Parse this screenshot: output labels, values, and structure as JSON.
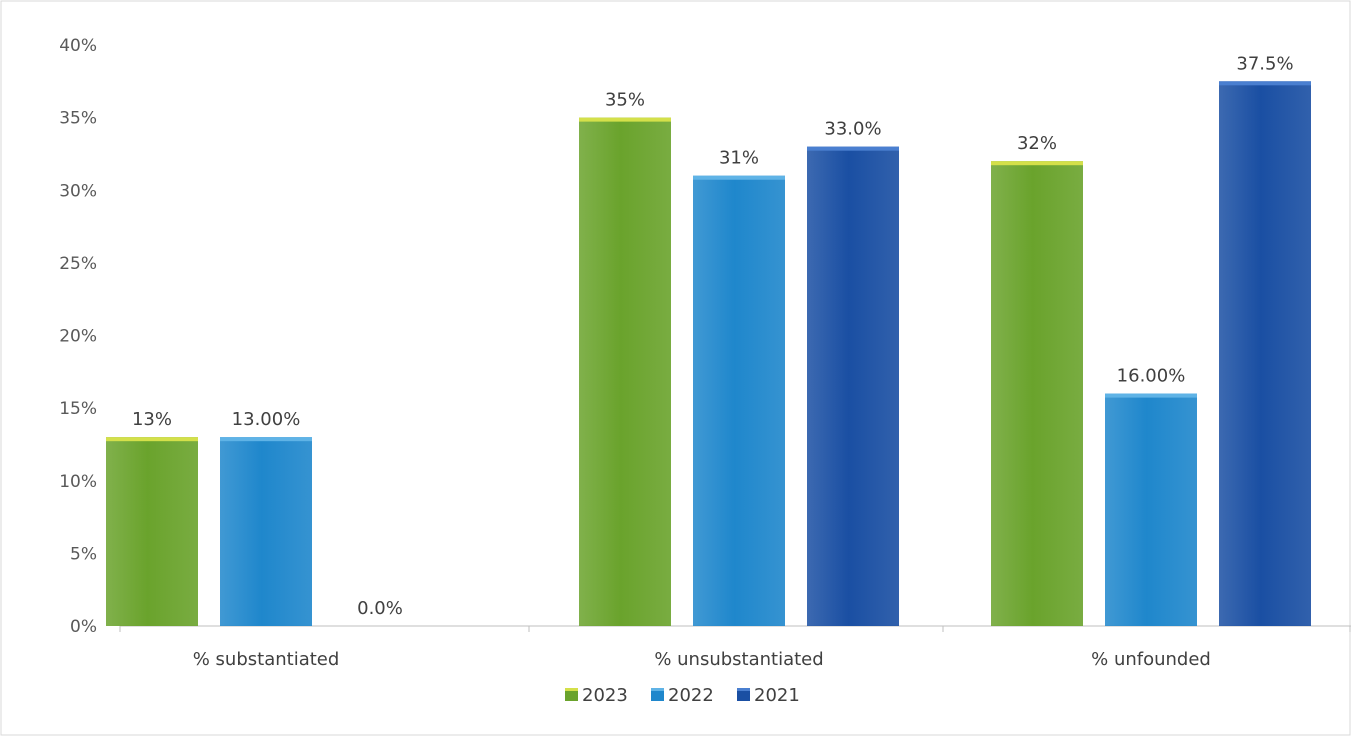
{
  "chart_data": {
    "type": "bar",
    "title": "",
    "xlabel": "",
    "ylabel": "",
    "categories": [
      "% substantiated",
      "% unsubstantiated",
      "% unfounded"
    ],
    "series": [
      {
        "name": "2023",
        "values": [
          13,
          35,
          32
        ],
        "labels": [
          "13%",
          "35%",
          "32%"
        ],
        "color": "#6aa32c",
        "top_color": "#d4e04a"
      },
      {
        "name": "2022",
        "values": [
          13,
          31,
          16
        ],
        "labels": [
          "13.00%",
          "31%",
          "16.00%"
        ],
        "color": "#1f87cc",
        "top_color": "#5fb3e6"
      },
      {
        "name": "2021",
        "values": [
          0,
          33,
          37.5
        ],
        "labels": [
          "0.0%",
          "33.0%",
          "37.5%"
        ],
        "color": "#1a4fa3",
        "top_color": "#4a7fd0"
      }
    ],
    "ylim": [
      0,
      40
    ],
    "yticks": [
      0,
      5,
      10,
      15,
      20,
      25,
      30,
      35,
      40
    ],
    "ytick_labels": [
      "0%",
      "5%",
      "10%",
      "15%",
      "20%",
      "25%",
      "30%",
      "35%",
      "40%"
    ],
    "grid": false,
    "legend_position": "bottom"
  }
}
